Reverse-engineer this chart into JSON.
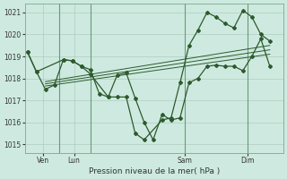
{
  "bg_color": "#ceeae0",
  "grid_color": "#b0ccbf",
  "line_color": "#2d5a2d",
  "xlabel": "Pression niveau de la mer( hPa )",
  "ylim": [
    1014.6,
    1021.4
  ],
  "yticks": [
    1015,
    1016,
    1017,
    1018,
    1019,
    1020,
    1021
  ],
  "xlim": [
    -0.3,
    28.5
  ],
  "vline_x": [
    3.5,
    7.0,
    17.5,
    24.5
  ],
  "xtick_positions": [
    1.7,
    5.2,
    17.5,
    24.5
  ],
  "xtick_labels": [
    "Ven",
    "Lun",
    "Sam",
    "Dim"
  ],
  "series_jagged1_x": [
    0,
    1,
    2,
    3,
    4,
    5,
    6,
    7,
    8,
    9,
    10,
    11,
    12,
    13,
    14,
    15,
    16,
    17,
    18,
    19,
    20,
    21,
    22,
    23,
    24,
    25,
    26,
    27
  ],
  "series_jagged1_y": [
    1019.2,
    1018.3,
    1017.5,
    1017.7,
    1018.85,
    1018.8,
    1018.55,
    1018.4,
    1017.3,
    1017.15,
    1018.15,
    1018.25,
    1017.1,
    1016.0,
    1015.2,
    1016.35,
    1016.1,
    1016.2,
    1017.8,
    1018.0,
    1018.55,
    1018.6,
    1018.55,
    1018.55,
    1018.35,
    1019.0,
    1019.8,
    1018.55
  ],
  "series_jagged2_x": [
    0,
    1,
    4,
    5,
    6,
    7,
    9,
    10,
    11,
    12,
    13,
    15,
    16,
    17,
    18,
    19,
    20,
    21,
    22,
    23,
    24,
    25,
    26,
    27
  ],
  "series_jagged2_y": [
    1019.2,
    1018.3,
    1018.85,
    1018.8,
    1018.55,
    1018.2,
    1017.15,
    1017.15,
    1017.15,
    1015.5,
    1015.2,
    1016.1,
    1016.2,
    1017.8,
    1019.5,
    1020.2,
    1021.0,
    1020.8,
    1020.5,
    1020.3,
    1021.1,
    1020.8,
    1020.0,
    1019.7
  ],
  "trend1_x": [
    2.0,
    27.0
  ],
  "trend1_y": [
    1017.85,
    1019.5
  ],
  "trend2_x": [
    2.0,
    27.0
  ],
  "trend2_y": [
    1017.75,
    1019.3
  ],
  "trend3_x": [
    2.0,
    27.0
  ],
  "trend3_y": [
    1017.65,
    1019.1
  ]
}
